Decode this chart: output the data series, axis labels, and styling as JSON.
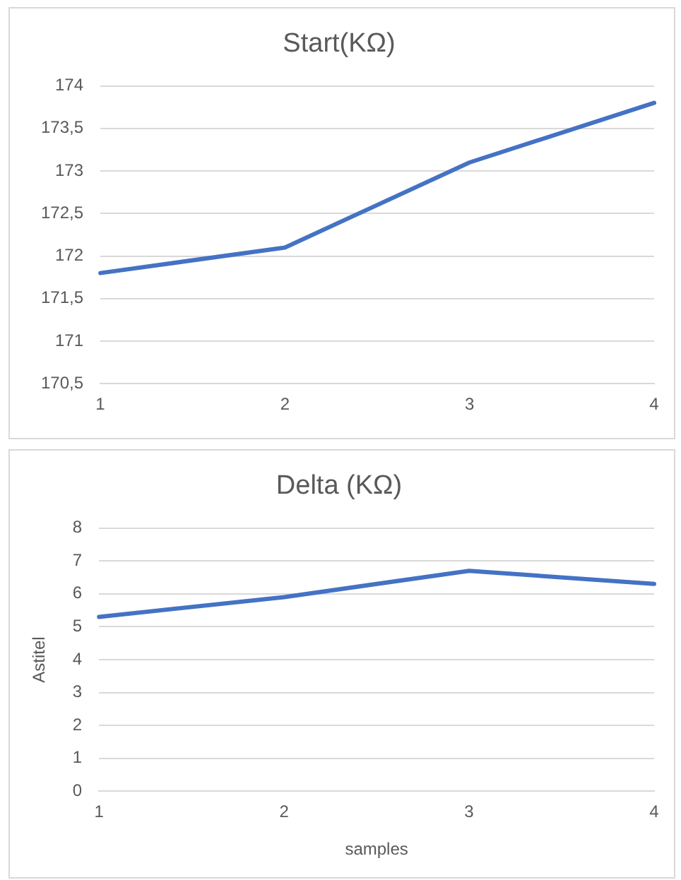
{
  "chart_data": [
    {
      "type": "line",
      "title": "Start(KΩ)",
      "categories": [
        "1",
        "2",
        "3",
        "4"
      ],
      "series": [
        {
          "color": "#4472c4",
          "values": [
            171.8,
            172.1,
            173.1,
            173.8
          ]
        }
      ],
      "ylim": [
        170.5,
        174
      ],
      "yticks": [
        {
          "value": 170.5,
          "label": "170,5"
        },
        171,
        {
          "value": 171.5,
          "label": "171,5"
        },
        172,
        {
          "value": 172.5,
          "label": "172,5"
        },
        173,
        {
          "value": 173.5,
          "label": "173,5"
        },
        174
      ],
      "grid": "y",
      "legend": false,
      "marker": "none",
      "line_style": "solid"
    },
    {
      "type": "line",
      "title": "Delta (KΩ)",
      "xlabel": "samples",
      "ylabel": "Astitel",
      "categories": [
        "1",
        "2",
        "3",
        "4"
      ],
      "series": [
        {
          "color": "#4472c4",
          "values": [
            5.3,
            5.9,
            6.7,
            6.3
          ]
        }
      ],
      "ylim": [
        0,
        8
      ],
      "yticks": [
        0,
        1,
        2,
        3,
        4,
        5,
        6,
        7,
        8
      ],
      "grid": "y",
      "legend": false,
      "marker": "none",
      "line_style": "solid"
    }
  ]
}
